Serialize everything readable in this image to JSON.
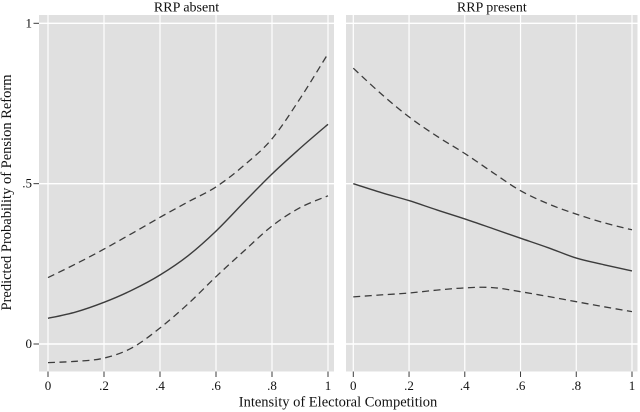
{
  "figure": {
    "xlabel": "Intensity of Electoral Competition",
    "ylabel": "Predicted Probability of Pension Reform",
    "colors": {
      "panel_bg": "#e0e0e0",
      "gridline": "#ffffff",
      "line": "#3c3c3c",
      "tick": "#3c3c3c",
      "text": "#111111",
      "outer_bg": "#ffffff"
    }
  },
  "chart_data": [
    {
      "type": "line",
      "title": "RRP absent",
      "xlabel": "Intensity of Electoral Competition",
      "ylabel": "Predicted Probability of Pension Reform",
      "xlim": [
        0,
        1
      ],
      "ylim": [
        -0.086,
        1.029
      ],
      "grid": true,
      "legend": "none",
      "x_ticks": [
        "0",
        ".2",
        ".4",
        ".6",
        ".8",
        "1"
      ],
      "x_tick_values": [
        0,
        0.2,
        0.4,
        0.6,
        0.8,
        1
      ],
      "y_ticks": [
        "1",
        ".5",
        "0"
      ],
      "y_tick_values": [
        1,
        0.5,
        0
      ],
      "x": [
        0,
        0.1,
        0.2,
        0.3,
        0.4,
        0.5,
        0.6,
        0.7,
        0.8,
        0.9,
        1.0
      ],
      "series": [
        {
          "name": "predicted probability",
          "style": "solid",
          "values": [
            0.08,
            0.1,
            0.13,
            0.168,
            0.215,
            0.275,
            0.352,
            0.442,
            0.53,
            0.61,
            0.685
          ]
        },
        {
          "name": "upper confidence bound",
          "style": "dashed",
          "values": [
            0.207,
            0.25,
            0.296,
            0.345,
            0.395,
            0.443,
            0.49,
            0.557,
            0.64,
            0.765,
            0.905
          ]
        },
        {
          "name": "lower confidence bound",
          "style": "dashed",
          "values": [
            -0.058,
            -0.054,
            -0.044,
            -0.012,
            0.05,
            0.125,
            0.21,
            0.29,
            0.368,
            0.425,
            0.462
          ]
        }
      ]
    },
    {
      "type": "line",
      "title": "RRP present",
      "xlabel": "Intensity of Electoral Competition",
      "ylabel": "Predicted Probability of Pension Reform",
      "xlim": [
        0,
        1
      ],
      "ylim": [
        -0.086,
        1.029
      ],
      "grid": true,
      "legend": "none",
      "x_ticks": [
        "0",
        ".2",
        ".4",
        ".6",
        ".8",
        "1"
      ],
      "x_tick_values": [
        0,
        0.2,
        0.4,
        0.6,
        0.8,
        1
      ],
      "y_ticks": [
        "1",
        ".5",
        "0"
      ],
      "y_tick_values": [
        1,
        0.5,
        0
      ],
      "x": [
        0,
        0.1,
        0.2,
        0.3,
        0.4,
        0.5,
        0.6,
        0.7,
        0.8,
        0.9,
        1.0
      ],
      "series": [
        {
          "name": "predicted probability",
          "style": "solid",
          "values": [
            0.5,
            0.472,
            0.447,
            0.418,
            0.39,
            0.36,
            0.33,
            0.3,
            0.268,
            0.247,
            0.228
          ]
        },
        {
          "name": "upper confidence bound",
          "style": "dashed",
          "values": [
            0.86,
            0.78,
            0.708,
            0.648,
            0.594,
            0.535,
            0.478,
            0.437,
            0.405,
            0.378,
            0.356
          ]
        },
        {
          "name": "lower confidence bound",
          "style": "dashed",
          "values": [
            0.147,
            0.153,
            0.159,
            0.168,
            0.175,
            0.176,
            0.163,
            0.148,
            0.132,
            0.116,
            0.101
          ]
        }
      ]
    }
  ]
}
